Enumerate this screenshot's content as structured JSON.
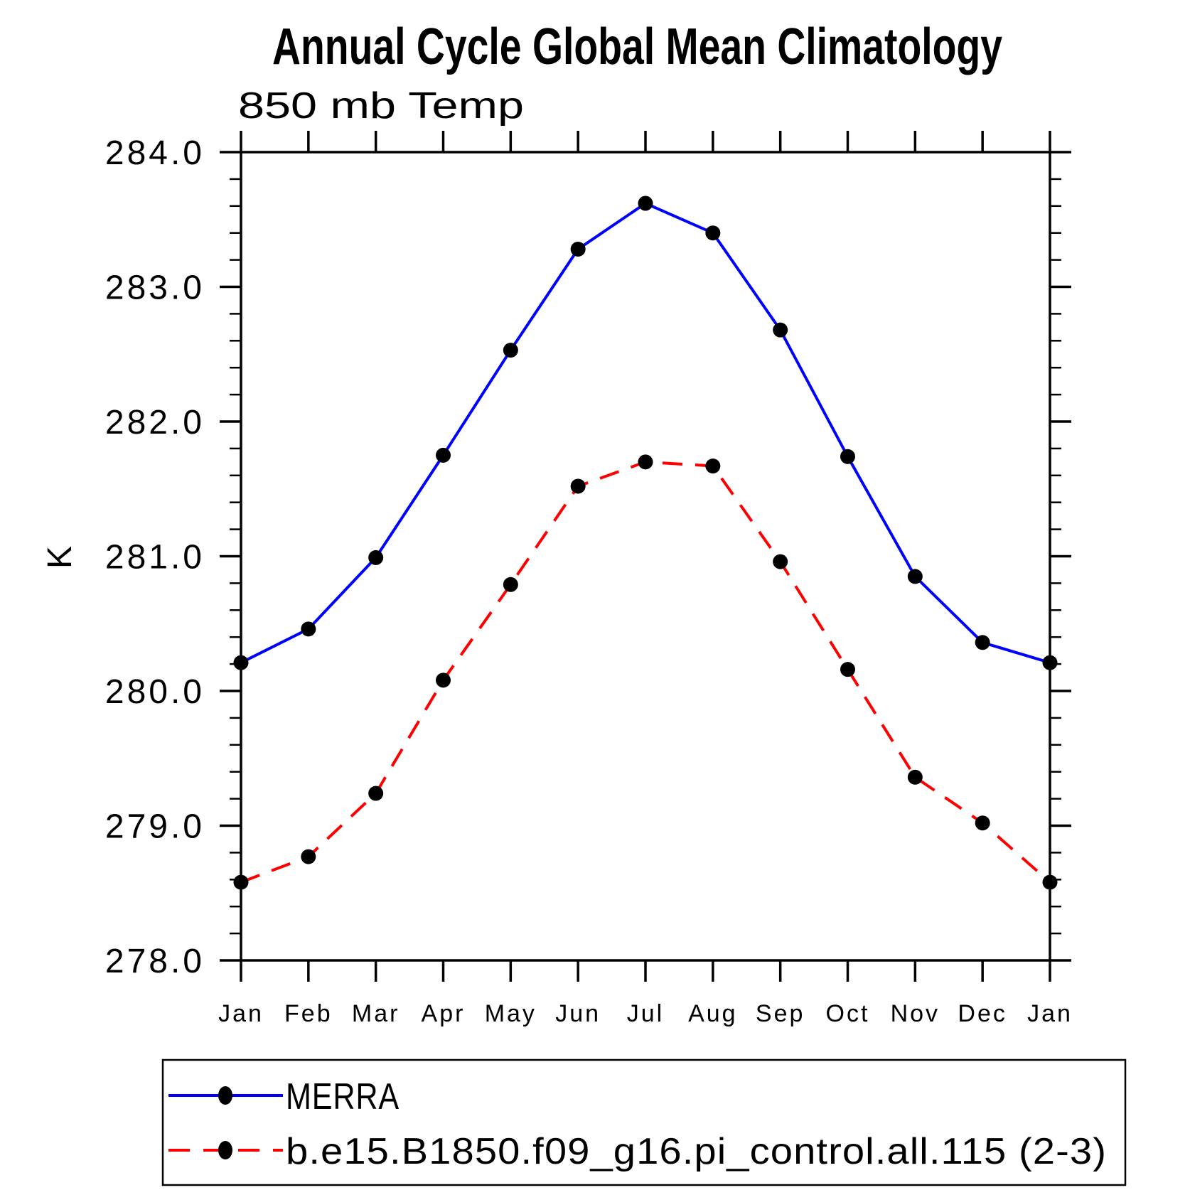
{
  "chart_data": {
    "type": "line",
    "title": "Annual Cycle Global Mean Climatology",
    "subtitle": "850 mb Temp",
    "ylabel": "K",
    "xlabel": "",
    "categories": [
      "Jan",
      "Feb",
      "Mar",
      "Apr",
      "May",
      "Jun",
      "Jul",
      "Aug",
      "Sep",
      "Oct",
      "Nov",
      "Dec",
      "Jan"
    ],
    "series": [
      {
        "name": "MERRA",
        "color": "#0000ff",
        "line_style": "solid",
        "marker": "filled-circle",
        "marker_color": "#000000",
        "values": [
          280.21,
          280.46,
          280.99,
          281.75,
          282.53,
          283.28,
          283.62,
          283.4,
          282.68,
          281.74,
          280.85,
          280.36,
          280.21
        ]
      },
      {
        "name": "b.e15.B1850.f09_g16.pi_control.all.115 (2-3)",
        "color": "#ff0000",
        "line_style": "dashed",
        "marker": "filled-circle",
        "marker_color": "#000000",
        "values": [
          278.58,
          278.77,
          279.24,
          280.08,
          280.79,
          281.52,
          281.7,
          281.67,
          280.96,
          280.16,
          279.36,
          279.02,
          278.58
        ]
      }
    ],
    "ylim": [
      278.0,
      284.0
    ],
    "ytick_step": 1.0,
    "ytick_minor_step": 0.2,
    "ytick_labels": [
      "278.0",
      "279.0",
      "280.0",
      "281.0",
      "282.0",
      "283.0",
      "284.0"
    ],
    "grid": false,
    "legend_position": "bottom",
    "units": "K"
  }
}
